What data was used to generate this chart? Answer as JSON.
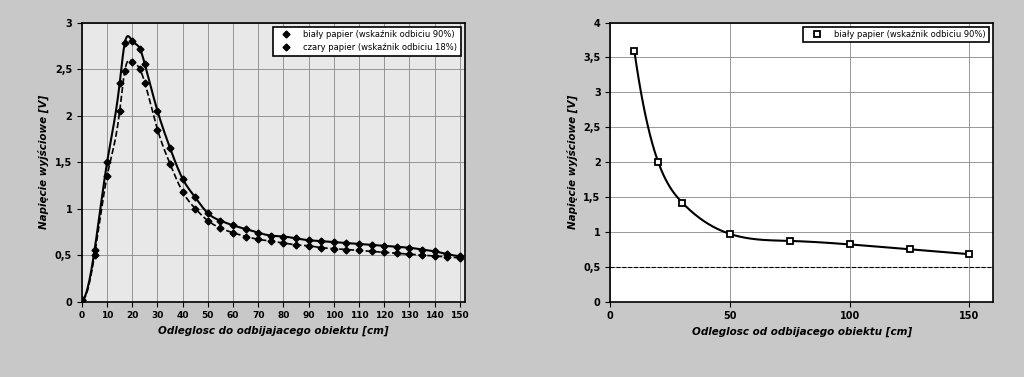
{
  "chart1": {
    "xlabel": "Odleglosc do odbijajacego obiektu [cm]",
    "ylabel": "Napięcie wyjściowe [V]",
    "x_ticks": [
      0,
      10,
      20,
      30,
      40,
      50,
      60,
      70,
      80,
      90,
      100,
      110,
      120,
      130,
      140,
      150
    ],
    "ylim": [
      0,
      3
    ],
    "xlim": [
      0,
      152
    ],
    "yticks": [
      0,
      0.5,
      1.0,
      1.5,
      2.0,
      2.5,
      3.0
    ],
    "ytick_labels": [
      "0",
      "0,5",
      "1",
      "1,5",
      "2",
      "2,5",
      "3"
    ],
    "line1_label": "biały papier (wskaźnik odbiciu 90%)",
    "line2_label": "czary papier (wskaźnik odbiciu 18%)",
    "line1_x": [
      0,
      5,
      10,
      15,
      17,
      20,
      23,
      25,
      30,
      35,
      40,
      45,
      50,
      55,
      60,
      65,
      70,
      75,
      80,
      85,
      90,
      95,
      100,
      105,
      110,
      115,
      120,
      125,
      130,
      135,
      140,
      145,
      150
    ],
    "line1_y": [
      0.02,
      0.55,
      1.5,
      2.35,
      2.78,
      2.8,
      2.72,
      2.55,
      2.05,
      1.65,
      1.32,
      1.12,
      0.95,
      0.87,
      0.82,
      0.78,
      0.74,
      0.71,
      0.7,
      0.68,
      0.66,
      0.65,
      0.64,
      0.63,
      0.62,
      0.61,
      0.6,
      0.59,
      0.58,
      0.56,
      0.54,
      0.51,
      0.49
    ],
    "line2_x": [
      0,
      5,
      10,
      15,
      17,
      20,
      23,
      25,
      30,
      35,
      40,
      45,
      50,
      55,
      60,
      65,
      70,
      75,
      80,
      85,
      90,
      95,
      100,
      105,
      110,
      115,
      120,
      125,
      130,
      135,
      140,
      145,
      150
    ],
    "line2_y": [
      0.02,
      0.5,
      1.35,
      2.05,
      2.48,
      2.58,
      2.5,
      2.35,
      1.85,
      1.48,
      1.18,
      1.0,
      0.87,
      0.79,
      0.74,
      0.7,
      0.67,
      0.65,
      0.63,
      0.61,
      0.6,
      0.58,
      0.57,
      0.56,
      0.55,
      0.54,
      0.53,
      0.52,
      0.51,
      0.5,
      0.49,
      0.48,
      0.47
    ],
    "bg_color": "#e8e8e8",
    "grid_color": "#888888"
  },
  "chart2": {
    "xlabel": "Odleglosc od odbijacego obiektu [cm]",
    "ylabel": "Napięcie wyjściowe [V]",
    "ylim": [
      0,
      4
    ],
    "xlim": [
      0,
      160
    ],
    "yticks": [
      0,
      0.5,
      1.0,
      1.5,
      2.0,
      2.5,
      3.0,
      3.5,
      4.0
    ],
    "ytick_labels": [
      "0",
      "0,5",
      "1",
      "1,5",
      "2",
      "2,5",
      "3",
      "3,5",
      "4"
    ],
    "xticks": [
      0,
      50,
      100,
      150
    ],
    "line1_label": "biały papier (wskaźnik odbiciu 90%)",
    "line1_x": [
      10,
      20,
      30,
      50,
      75,
      100,
      125,
      150
    ],
    "line1_y": [
      3.6,
      2.0,
      1.42,
      0.97,
      0.87,
      0.82,
      0.75,
      0.68
    ],
    "hline_y": 0.5,
    "bg_color": "#ffffff",
    "grid_color": "#888888"
  },
  "fig_bg": "#c8c8c8"
}
